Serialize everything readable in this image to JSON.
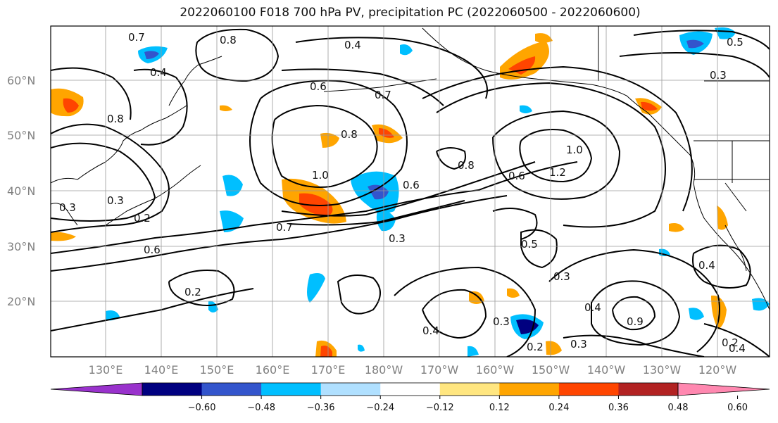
{
  "title": "2022060100 F018 700 hPa PV, precipitation PC (2022060500 - 2022060600)",
  "lon_labels": [
    "130°E",
    "140°E",
    "150°E",
    "160°E",
    "170°E",
    "180°W",
    "170°W",
    "160°W",
    "150°W",
    "140°W",
    "130°W",
    "120°W"
  ],
  "lat_labels": [
    "60°N",
    "50°N",
    "40°N",
    "30°N",
    "20°N"
  ],
  "colorbar": {
    "ticks": [
      "−0.60",
      "−0.48",
      "−0.36",
      "−0.24",
      "−0.12",
      "0.12",
      "0.24",
      "0.36",
      "0.48",
      "0.60"
    ],
    "colors": [
      "#9932cc",
      "#000080",
      "#3355cc",
      "#00bfff",
      "#b0e0ff",
      "#ffffff",
      "#ffe680",
      "#ffa500",
      "#ff4500",
      "#b22222",
      "#ff88b0"
    ]
  },
  "contour_labels": [
    "0.7",
    "0.8",
    "0.4",
    "0.6",
    "0.7",
    "0.5",
    "0.3",
    "0.4",
    "0.8",
    "1.0",
    "1.2",
    "0.6",
    "0.8",
    "0.3",
    "0.2",
    "0.6",
    "0.2",
    "0.3",
    "0.4",
    "0.5",
    "0.3",
    "0.4",
    "0.3",
    "0.9",
    "0.2",
    "0.3",
    "0.4",
    "0.2",
    "0.4",
    "0.7",
    "1.0",
    "0.6",
    "0.3",
    "0.8"
  ],
  "colors": {
    "contour": "#000000",
    "grid": "#9a9a9a",
    "coast": "#000000"
  }
}
